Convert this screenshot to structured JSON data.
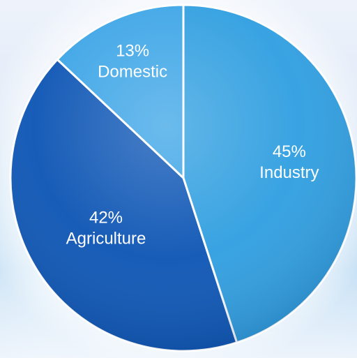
{
  "chart_data": {
    "type": "pie",
    "title": "",
    "slices": [
      {
        "label": "Industry",
        "value": 45,
        "percent_label": "45%",
        "color": "#2e9ee0"
      },
      {
        "label": "Agriculture",
        "value": 42,
        "percent_label": "42%",
        "color": "#0b54b4"
      },
      {
        "label": "Domestic",
        "value": 13,
        "percent_label": "13%",
        "color": "#3aa4e6"
      }
    ],
    "legend": "none",
    "grid": false,
    "colors": {
      "edge": "#ffffff",
      "text": "#ffffff"
    }
  }
}
